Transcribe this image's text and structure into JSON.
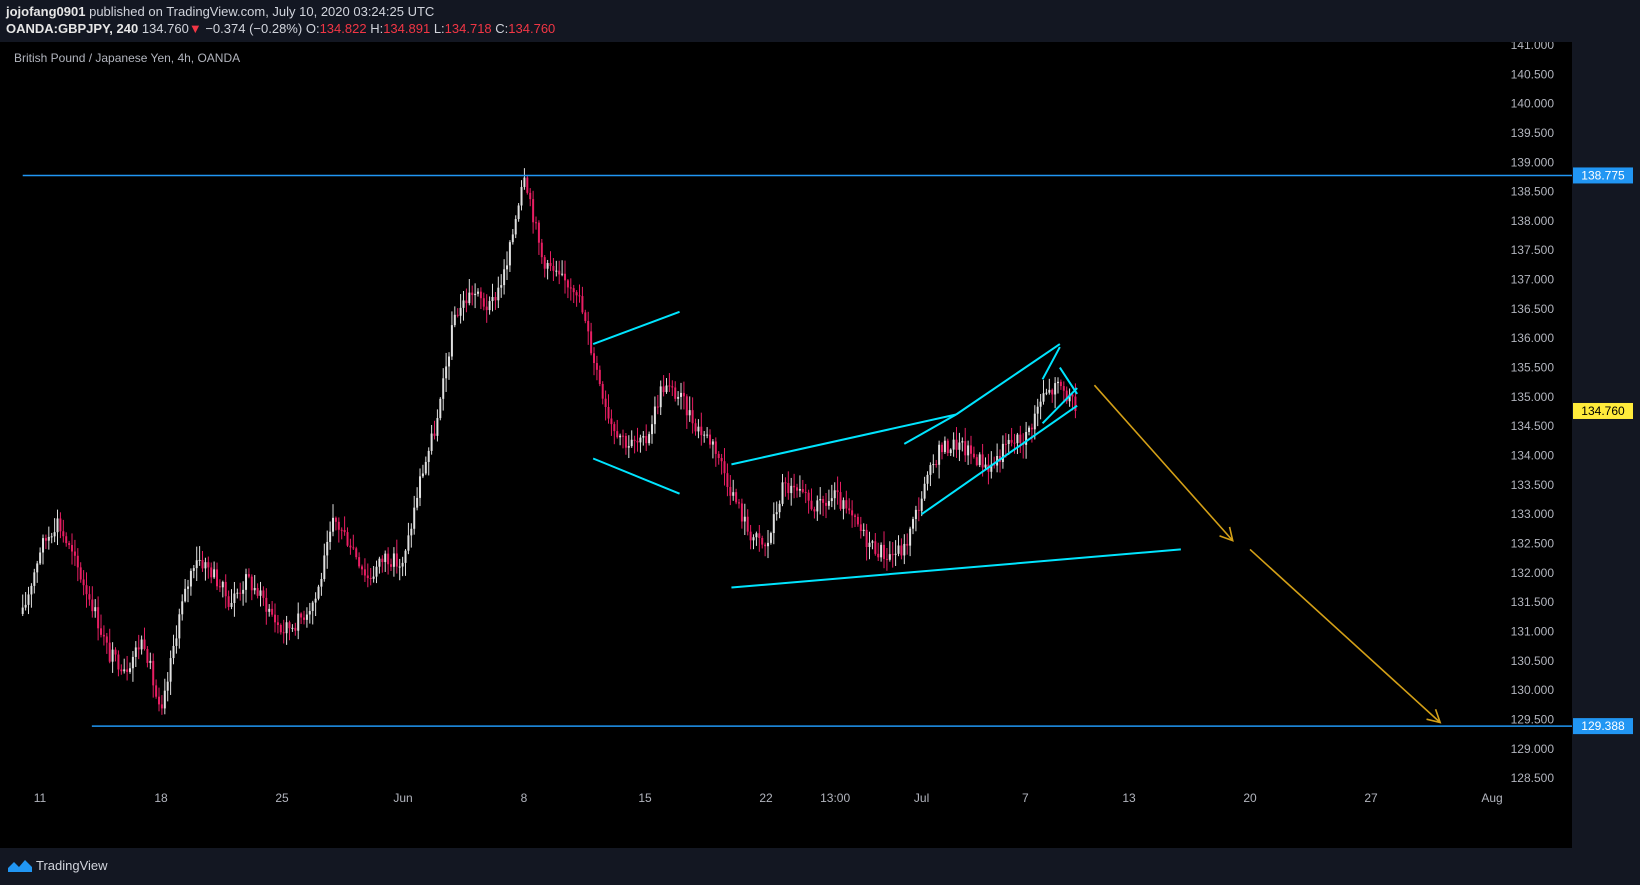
{
  "header": {
    "author": "jojofang0901",
    "published_text": "published on TradingView.com, July 10, 2020 03:24:25 UTC",
    "symbol": "OANDA:GBPJPY, 240",
    "last": "134.760",
    "change_arrow": "▼",
    "change": "−0.374 (−0.28%)",
    "o_label": "O:",
    "o": "134.822",
    "h_label": "H:",
    "h": "134.891",
    "l_label": "L:",
    "l": "134.718",
    "c_label": "C:",
    "c": "134.760"
  },
  "footer": {
    "brand": "TradingView",
    "brand_icon": "tradingview-logo-icon"
  },
  "colors": {
    "background": "#000000",
    "panel": "#131722",
    "up": "#e0e0e0",
    "down": "#e91e63",
    "level_line": "#2196f3",
    "trendline": "#00e5ff",
    "arrow": "#d4a017",
    "price_tag_current": "#ffeb3b"
  },
  "chart_data": {
    "type": "candlestick",
    "title": "British Pound / Japanese Yen, 4h, OANDA",
    "y_axis": {
      "side": "right",
      "ylim": [
        128.35,
        141.05
      ],
      "ticks": [
        "141.000",
        "140.500",
        "140.000",
        "139.500",
        "139.000",
        "138.500",
        "138.000",
        "137.500",
        "137.000",
        "136.500",
        "136.000",
        "135.500",
        "135.000",
        "134.500",
        "134.000",
        "133.500",
        "133.000",
        "132.500",
        "132.000",
        "131.500",
        "131.000",
        "130.500",
        "130.000",
        "129.500",
        "129.000",
        "128.500"
      ]
    },
    "x_axis": {
      "ticks": [
        {
          "label": "11",
          "date": "2020-05-11"
        },
        {
          "label": "18",
          "date": "2020-05-18"
        },
        {
          "label": "25",
          "date": "2020-05-25"
        },
        {
          "label": "Jun",
          "date": "2020-06-01"
        },
        {
          "label": "8",
          "date": "2020-06-08"
        },
        {
          "label": "15",
          "date": "2020-06-15"
        },
        {
          "label": "22",
          "date": "2020-06-22"
        },
        {
          "label": "13:00",
          "date": "2020-06-26"
        },
        {
          "label": "Jul",
          "date": "2020-07-01"
        },
        {
          "label": "7",
          "date": "2020-07-07"
        },
        {
          "label": "13",
          "date": "2020-07-13"
        },
        {
          "label": "20",
          "date": "2020-07-20"
        },
        {
          "label": "27",
          "date": "2020-07-27"
        },
        {
          "label": "Aug",
          "date": "2020-08-03"
        }
      ]
    },
    "close_path": [
      [
        "2020-05-10",
        131.3
      ],
      [
        "2020-05-11",
        132.4
      ],
      [
        "2020-05-12",
        132.9
      ],
      [
        "2020-05-13",
        132.2
      ],
      [
        "2020-05-14",
        131.5
      ],
      [
        "2020-05-15",
        130.6
      ],
      [
        "2020-05-16",
        130.4
      ],
      [
        "2020-05-17",
        130.9
      ],
      [
        "2020-05-18",
        129.5
      ],
      [
        "2020-05-19",
        131.2
      ],
      [
        "2020-05-20",
        132.3
      ],
      [
        "2020-05-21",
        132.0
      ],
      [
        "2020-05-22",
        131.5
      ],
      [
        "2020-05-23",
        131.9
      ],
      [
        "2020-05-24",
        131.5
      ],
      [
        "2020-05-25",
        131.0
      ],
      [
        "2020-05-26",
        131.2
      ],
      [
        "2020-05-27",
        131.6
      ],
      [
        "2020-05-28",
        132.9
      ],
      [
        "2020-05-29",
        132.5
      ],
      [
        "2020-05-30",
        131.9
      ],
      [
        "2020-05-31",
        132.3
      ],
      [
        "2020-06-01",
        132.1
      ],
      [
        "2020-06-02",
        133.6
      ],
      [
        "2020-06-03",
        134.6
      ],
      [
        "2020-06-04",
        136.4
      ],
      [
        "2020-06-05",
        136.8
      ],
      [
        "2020-06-06",
        136.5
      ],
      [
        "2020-06-07",
        137.2
      ],
      [
        "2020-06-08",
        138.9
      ],
      [
        "2020-06-09",
        137.4
      ],
      [
        "2020-06-10",
        137.0
      ],
      [
        "2020-06-11",
        136.9
      ],
      [
        "2020-06-12",
        135.7
      ],
      [
        "2020-06-13",
        134.6
      ],
      [
        "2020-06-14",
        134.2
      ],
      [
        "2020-06-15",
        134.2
      ],
      [
        "2020-06-16",
        135.2
      ],
      [
        "2020-06-17",
        135.0
      ],
      [
        "2020-06-18",
        134.5
      ],
      [
        "2020-06-19",
        134.2
      ],
      [
        "2020-06-20",
        133.4
      ],
      [
        "2020-06-21",
        132.7
      ],
      [
        "2020-06-22",
        132.4
      ],
      [
        "2020-06-23",
        133.5
      ],
      [
        "2020-06-24",
        133.3
      ],
      [
        "2020-06-25",
        133.1
      ],
      [
        "2020-06-26",
        133.3
      ],
      [
        "2020-06-27",
        132.9
      ],
      [
        "2020-06-28",
        132.5
      ],
      [
        "2020-06-29",
        132.3
      ],
      [
        "2020-06-30",
        132.4
      ],
      [
        "2020-07-01",
        133.3
      ],
      [
        "2020-07-02",
        134.1
      ],
      [
        "2020-07-03",
        134.2
      ],
      [
        "2020-07-04",
        134.0
      ],
      [
        "2020-07-05",
        133.8
      ],
      [
        "2020-07-06",
        134.2
      ],
      [
        "2020-07-07",
        134.3
      ],
      [
        "2020-07-08",
        135.0
      ],
      [
        "2020-07-09",
        135.2
      ],
      [
        "2020-07-10",
        134.76
      ]
    ],
    "ohlc_last": {
      "open": 134.822,
      "high": 134.891,
      "low": 134.718,
      "close": 134.76
    },
    "last_price": 134.76,
    "horizontal_levels": [
      {
        "price": 138.775,
        "label": "138.775",
        "from": "2020-05-10"
      },
      {
        "price": 129.388,
        "label": "129.388",
        "from": "2020-05-14"
      }
    ],
    "drawings": [
      {
        "kind": "trendline",
        "points": [
          [
            "2020-06-12",
            135.9
          ],
          [
            "2020-06-17",
            136.45
          ]
        ]
      },
      {
        "kind": "trendline",
        "points": [
          [
            "2020-06-12",
            133.95
          ],
          [
            "2020-06-17",
            133.35
          ]
        ]
      },
      {
        "kind": "trendline",
        "points": [
          [
            "2020-06-20",
            133.85
          ],
          [
            "2020-07-03",
            134.7
          ]
        ]
      },
      {
        "kind": "trendline",
        "points": [
          [
            "2020-06-20",
            131.75
          ],
          [
            "2020-07-16",
            132.4
          ]
        ]
      },
      {
        "kind": "trendline",
        "points": [
          [
            "2020-06-30",
            134.2
          ],
          [
            "2020-07-03",
            134.7
          ]
        ]
      },
      {
        "kind": "trendline",
        "points": [
          [
            "2020-07-03",
            134.7
          ],
          [
            "2020-07-09",
            135.9
          ]
        ]
      },
      {
        "kind": "trendline",
        "points": [
          [
            "2020-07-01",
            133.0
          ],
          [
            "2020-07-10",
            134.85
          ]
        ]
      },
      {
        "kind": "trendline",
        "points": [
          [
            "2020-07-08",
            135.3
          ],
          [
            "2020-07-09",
            135.85
          ]
        ]
      },
      {
        "kind": "trendline",
        "points": [
          [
            "2020-07-08",
            134.55
          ],
          [
            "2020-07-10",
            135.15
          ]
        ]
      },
      {
        "kind": "trendline",
        "points": [
          [
            "2020-07-09",
            135.5
          ],
          [
            "2020-07-10",
            135.05
          ]
        ]
      },
      {
        "kind": "arrow",
        "points": [
          [
            "2020-07-11",
            135.2
          ],
          [
            "2020-07-19",
            132.55
          ]
        ]
      },
      {
        "kind": "arrow",
        "points": [
          [
            "2020-07-20",
            132.4
          ],
          [
            "2020-07-31",
            129.45
          ]
        ]
      }
    ]
  }
}
